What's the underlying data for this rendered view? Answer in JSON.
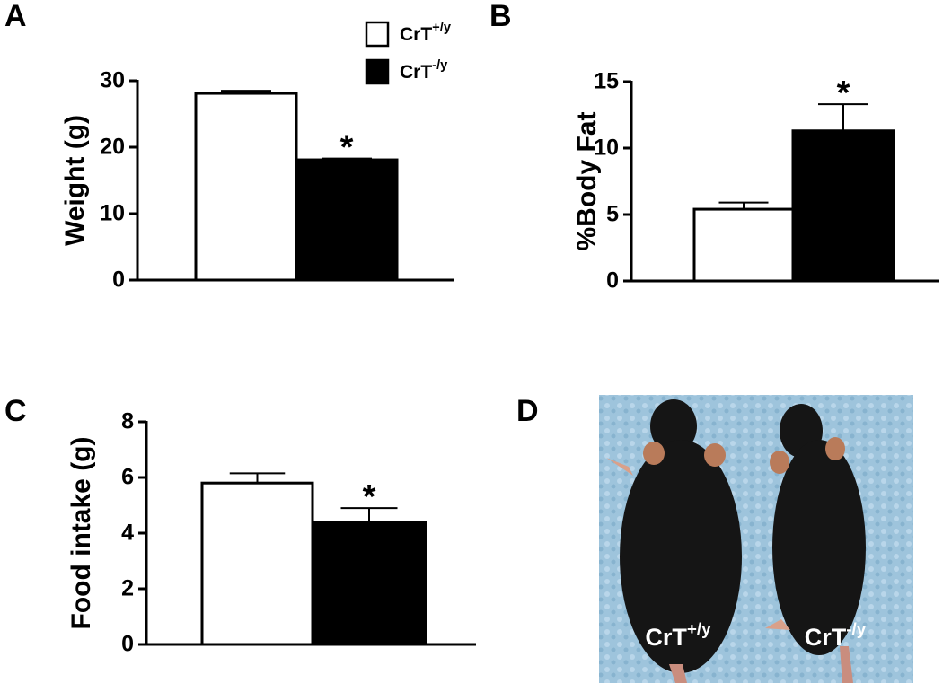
{
  "chart_data": [
    {
      "type": "bar",
      "panel": "A",
      "ylabel": "Weight (g)",
      "ylim": [
        0,
        30
      ],
      "yticks": [
        0,
        10,
        20,
        30
      ],
      "series": [
        {
          "name": "CrT+/y",
          "color": "#ffffff",
          "values": [
            28.1
          ],
          "errors": [
            0.4
          ]
        },
        {
          "name": "CrT-/y",
          "color": "#000000",
          "values": [
            18.1
          ],
          "errors": [
            0.2
          ]
        }
      ],
      "annotations": [
        {
          "text": "*",
          "series": 1
        }
      ]
    },
    {
      "type": "bar",
      "panel": "B",
      "ylabel": "%Body Fat",
      "ylim": [
        0,
        15
      ],
      "yticks": [
        0,
        5,
        10,
        15
      ],
      "series": [
        {
          "color": "#ffffff",
          "values": [
            5.4
          ],
          "errors": [
            0.5
          ]
        },
        {
          "color": "#000000",
          "values": [
            11.3
          ],
          "errors": [
            2.0
          ]
        }
      ],
      "annotations": [
        {
          "text": "*",
          "series": 1
        }
      ]
    },
    {
      "type": "bar",
      "panel": "C",
      "ylabel": "Food intake (g)",
      "ylim": [
        0,
        8
      ],
      "yticks": [
        0,
        2,
        4,
        6,
        8
      ],
      "series": [
        {
          "color": "#ffffff",
          "values": [
            5.8
          ],
          "errors": [
            0.35
          ]
        },
        {
          "color": "#000000",
          "values": [
            4.4
          ],
          "errors": [
            0.5
          ]
        }
      ],
      "annotations": [
        {
          "text": "*",
          "series": 1
        }
      ]
    },
    {
      "type": "photo",
      "panel": "D",
      "labels": [
        "CrT+/y",
        "CrT-/y"
      ]
    }
  ]
}
